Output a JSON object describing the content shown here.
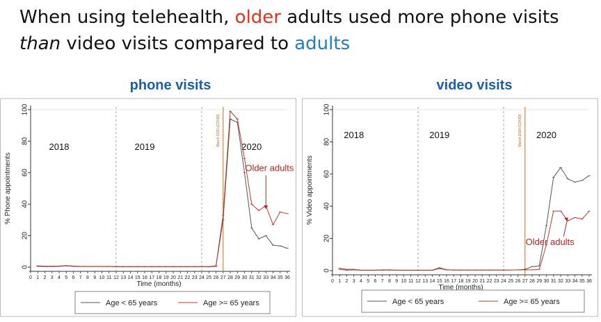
{
  "slide": {
    "title_part1": "When using telehealth, ",
    "title_older": "older",
    "title_part2": " adults used more phone visits",
    "title_than": "than",
    "title_part3": " video visits compared to ",
    "title_adults": "adults"
  },
  "colors": {
    "under65": "#555555",
    "over65": "#c0392b",
    "covid_line": "#e0842b",
    "panel_title": "#1a5fa8",
    "title_older": "#e8311a",
    "title_adults": "#1f7fc4",
    "annotation": "#b5231f"
  },
  "chart_data": [
    {
      "id": "phone",
      "type": "line",
      "title": "phone visits",
      "xlabel": "Time (months)",
      "ylabel": "% Phone appointments",
      "xlim": [
        0,
        36
      ],
      "ylim": [
        0,
        100
      ],
      "yticks": [
        0,
        20,
        40,
        60,
        80,
        100
      ],
      "year_labels": [
        {
          "text": "2018",
          "x": 4
        },
        {
          "text": "2019",
          "x": 16
        },
        {
          "text": "2020",
          "x": 31
        }
      ],
      "year_dividers": [
        12,
        24
      ],
      "covid_x": 27,
      "covid_label": "March 2020 (COVID)",
      "annotation": {
        "text": "Older adults",
        "x": 33.5,
        "y": 61,
        "arrow_to": [
          33,
          37
        ]
      },
      "legend": [
        "Age < 65 years",
        "Age >= 65 years"
      ],
      "series": [
        {
          "name": "Age < 65 years",
          "x": [
            1,
            2,
            3,
            4,
            5,
            6,
            7,
            8,
            9,
            10,
            11,
            12,
            13,
            14,
            15,
            16,
            17,
            18,
            19,
            20,
            21,
            22,
            23,
            24,
            25,
            26,
            27,
            28,
            29,
            30,
            31,
            32,
            33,
            34,
            35,
            36
          ],
          "values": [
            0.5,
            0.4,
            0.4,
            0.5,
            0.8,
            0.5,
            0.4,
            0.4,
            0.4,
            0.4,
            0.4,
            0.3,
            0.3,
            0.3,
            0.3,
            0.3,
            0.3,
            0.3,
            0.3,
            0.3,
            0.3,
            0.3,
            0.3,
            0.3,
            0.3,
            0.5,
            30,
            94,
            92,
            60,
            25,
            18,
            20,
            14,
            13.5,
            12
          ]
        },
        {
          "name": "Age >= 65 years",
          "x": [
            1,
            2,
            3,
            4,
            5,
            6,
            7,
            8,
            9,
            10,
            11,
            12,
            13,
            14,
            15,
            16,
            17,
            18,
            19,
            20,
            21,
            22,
            23,
            24,
            25,
            26,
            27,
            28,
            29,
            30,
            31,
            32,
            33,
            34,
            35,
            36
          ],
          "values": [
            0.8,
            0.6,
            0.6,
            0.7,
            1,
            0.7,
            0.5,
            0.5,
            0.5,
            0.5,
            0.5,
            0.4,
            0.4,
            0.4,
            0.4,
            0.4,
            0.4,
            0.4,
            0.4,
            0.4,
            0.4,
            0.4,
            0.4,
            0.4,
            0.4,
            0.8,
            33,
            99,
            94,
            69,
            40,
            36,
            39,
            27,
            35,
            34
          ]
        }
      ]
    },
    {
      "id": "video",
      "type": "line",
      "title": "video visits",
      "xlabel": "Time (months)",
      "ylabel": "% Video appointments",
      "xlim": [
        0,
        36
      ],
      "ylim": [
        0,
        100
      ],
      "yticks": [
        0,
        20,
        40,
        60,
        80,
        100
      ],
      "year_labels": [
        {
          "text": "2018",
          "x": 3
        },
        {
          "text": "2019",
          "x": 15
        },
        {
          "text": "2020",
          "x": 30
        }
      ],
      "year_dividers": [
        12,
        24
      ],
      "covid_x": 27,
      "covid_label": "March 2020 (COVID)",
      "annotation": {
        "text": "Older adults",
        "x": 30.5,
        "y": 16,
        "arrow_to": [
          33,
          33
        ]
      },
      "legend": [
        "Age < 65 years",
        "Age >= 65 years"
      ],
      "series": [
        {
          "name": "Age < 65 years",
          "x": [
            1,
            2,
            3,
            4,
            5,
            6,
            7,
            8,
            9,
            10,
            11,
            12,
            13,
            14,
            15,
            16,
            17,
            18,
            19,
            20,
            21,
            22,
            23,
            24,
            25,
            26,
            27,
            28,
            29,
            30,
            31,
            32,
            33,
            34,
            35,
            36
          ],
          "values": [
            0.8,
            0.3,
            0.5,
            0.2,
            0.2,
            0.2,
            0.3,
            0.3,
            0.2,
            0.2,
            0.2,
            0.2,
            0.2,
            0.2,
            1.3,
            0.5,
            0.3,
            0.3,
            0.3,
            0.3,
            0.3,
            0.3,
            0.3,
            0.3,
            0.4,
            0.5,
            0.8,
            2.5,
            3,
            28,
            58,
            64,
            57,
            55,
            56,
            59
          ]
        },
        {
          "name": "Age >= 65 years",
          "x": [
            1,
            2,
            3,
            4,
            5,
            6,
            7,
            8,
            9,
            10,
            11,
            12,
            13,
            14,
            15,
            16,
            17,
            18,
            19,
            20,
            21,
            22,
            23,
            24,
            25,
            26,
            27,
            28,
            29,
            30,
            31,
            32,
            33,
            34,
            35,
            36
          ],
          "values": [
            1.5,
            0.8,
            0.8,
            0.3,
            0.3,
            0.3,
            0.5,
            0.5,
            0.3,
            0.3,
            0.3,
            0.3,
            0.3,
            0.3,
            1.8,
            0.6,
            0.4,
            0.4,
            0.4,
            0.4,
            0.4,
            0.4,
            0.4,
            0.4,
            0.4,
            0.5,
            0.5,
            0.5,
            0.8,
            16,
            37,
            37,
            31,
            33,
            32,
            37
          ]
        }
      ]
    }
  ]
}
